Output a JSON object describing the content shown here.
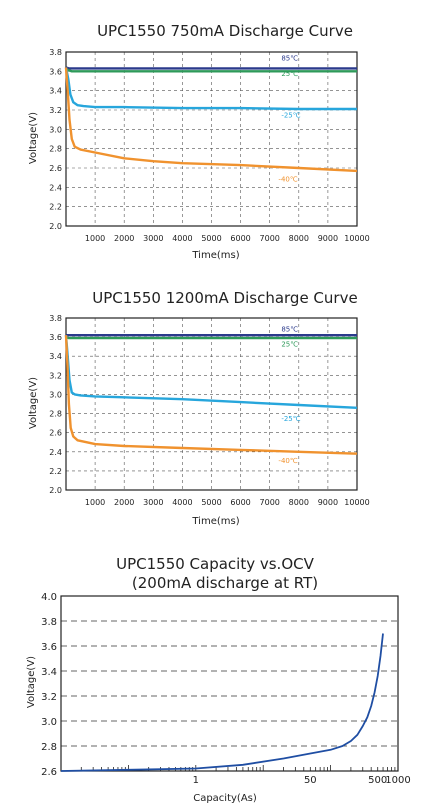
{
  "chart_data": [
    {
      "type": "line",
      "title": "UPC1550 750mA  Discharge Curve",
      "xlabel": "Time(ms)",
      "ylabel": "Voltage(V)",
      "xlim": [
        0,
        10000
      ],
      "ylim": [
        2.0,
        3.8
      ],
      "grid": "dashed",
      "x_ticks": [
        "1000",
        "2000",
        "3000",
        "4000",
        "5000",
        "6000",
        "7000",
        "8000",
        "9000",
        "10000"
      ],
      "y_ticks": [
        "2.0",
        "2.2",
        "2.4",
        "2.6",
        "2.8",
        "3.0",
        "3.2",
        "3.4",
        "3.6",
        "3.8"
      ],
      "series": [
        {
          "name": "85℃",
          "color": "#2b3a8c",
          "x": [
            0,
            100,
            200,
            400,
            1000,
            2000,
            4000,
            6000,
            8000,
            10000
          ],
          "y": [
            3.64,
            3.63,
            3.63,
            3.63,
            3.63,
            3.63,
            3.63,
            3.63,
            3.63,
            3.63
          ]
        },
        {
          "name": "25℃",
          "color": "#2e9a5a",
          "x": [
            0,
            100,
            200,
            400,
            1000,
            2000,
            4000,
            6000,
            8000,
            10000
          ],
          "y": [
            3.62,
            3.61,
            3.6,
            3.6,
            3.6,
            3.6,
            3.6,
            3.6,
            3.6,
            3.6
          ]
        },
        {
          "name": "-25℃",
          "color": "#27a6dc",
          "x": [
            0,
            80,
            150,
            250,
            400,
            600,
            1000,
            2000,
            4000,
            6000,
            8000,
            10000
          ],
          "y": [
            3.64,
            3.52,
            3.36,
            3.28,
            3.25,
            3.24,
            3.23,
            3.23,
            3.22,
            3.22,
            3.21,
            3.21
          ]
        },
        {
          "name": "-40℃",
          "color": "#f0922e",
          "x": [
            0,
            60,
            120,
            200,
            300,
            500,
            1000,
            2000,
            3000,
            4000,
            6000,
            8000,
            10000
          ],
          "y": [
            3.64,
            3.4,
            3.1,
            2.9,
            2.82,
            2.79,
            2.76,
            2.7,
            2.67,
            2.65,
            2.63,
            2.6,
            2.57
          ]
        }
      ]
    },
    {
      "type": "line",
      "title": "UPC1550 1200mA  Discharge Curve",
      "xlabel": "Time(ms)",
      "ylabel": "Voltage(V)",
      "xlim": [
        0,
        10000
      ],
      "ylim": [
        2.0,
        3.8
      ],
      "grid": "dashed",
      "x_ticks": [
        "1000",
        "2000",
        "3000",
        "4000",
        "5000",
        "6000",
        "7000",
        "8000",
        "9000",
        "10000"
      ],
      "y_ticks": [
        "2.0",
        "2.2",
        "2.4",
        "2.6",
        "2.8",
        "3.0",
        "3.2",
        "3.4",
        "3.6",
        "3.8"
      ],
      "series": [
        {
          "name": "85℃",
          "color": "#2b3a8c",
          "x": [
            0,
            100,
            200,
            400,
            1000,
            2000,
            4000,
            6000,
            8000,
            10000
          ],
          "y": [
            3.62,
            3.62,
            3.62,
            3.62,
            3.62,
            3.62,
            3.62,
            3.62,
            3.62,
            3.62
          ]
        },
        {
          "name": "25℃",
          "color": "#2e9a5a",
          "x": [
            0,
            100,
            200,
            400,
            1000,
            2000,
            4000,
            6000,
            8000,
            10000
          ],
          "y": [
            3.6,
            3.59,
            3.59,
            3.59,
            3.59,
            3.59,
            3.59,
            3.59,
            3.59,
            3.59
          ]
        },
        {
          "name": "-25℃",
          "color": "#27a6dc",
          "x": [
            0,
            60,
            120,
            200,
            300,
            500,
            1000,
            2000,
            4000,
            6000,
            8000,
            10000
          ],
          "y": [
            3.62,
            3.4,
            3.15,
            3.02,
            3.0,
            2.99,
            2.98,
            2.97,
            2.95,
            2.92,
            2.89,
            2.86
          ]
        },
        {
          "name": "-40℃",
          "color": "#f0922e",
          "x": [
            0,
            50,
            100,
            160,
            250,
            400,
            700,
            1000,
            2000,
            4000,
            6000,
            8000,
            10000
          ],
          "y": [
            3.62,
            3.3,
            2.9,
            2.65,
            2.56,
            2.52,
            2.5,
            2.48,
            2.46,
            2.44,
            2.42,
            2.4,
            2.38
          ]
        }
      ]
    },
    {
      "type": "line",
      "title": "UPC1550 Capacity vs.OCV",
      "subtitle": "(200mA discharge at RT)",
      "xlabel": "Capacity(As)",
      "ylabel": "Voltage(V)",
      "x_scale": "log",
      "xlim": [
        0.01,
        1000
      ],
      "ylim": [
        2.6,
        4.0
      ],
      "grid": "horizontal dashed",
      "x_ticks": [
        {
          "value": 1,
          "label": "1"
        },
        {
          "value": 50,
          "label": "50"
        },
        {
          "value": 500,
          "label": "500"
        },
        {
          "value": 1000,
          "label": "1000"
        }
      ],
      "y_ticks": [
        "2.6",
        "2.8",
        "3.0",
        "3.2",
        "3.4",
        "3.6",
        "3.8",
        "4.0"
      ],
      "series": [
        {
          "color": "#1f4ea3",
          "x": [
            0.01,
            0.1,
            1,
            5,
            20,
            50,
            100,
            150,
            200,
            250,
            300,
            350,
            400,
            450,
            500,
            550,
            600
          ],
          "y": [
            2.6,
            2.61,
            2.62,
            2.65,
            2.7,
            2.74,
            2.77,
            2.8,
            2.84,
            2.89,
            2.96,
            3.03,
            3.12,
            3.23,
            3.36,
            3.52,
            3.7
          ]
        }
      ]
    }
  ]
}
